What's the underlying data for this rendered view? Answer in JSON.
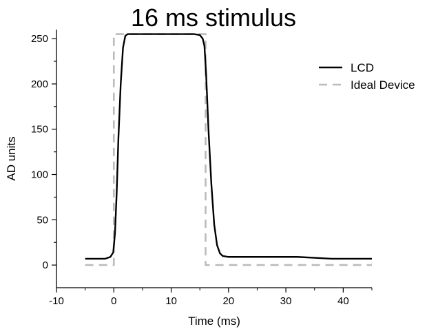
{
  "colors": {
    "lcd": "#000000",
    "ideal": "#bbbbbb",
    "axis": "#000000"
  },
  "chart_data": {
    "type": "line",
    "title": "16 ms stimulus",
    "xlabel": "Time (ms)",
    "ylabel": "AD units",
    "xlim": [
      -10,
      45
    ],
    "ylim": [
      -25,
      260
    ],
    "xticks": [
      -10,
      0,
      10,
      20,
      30,
      40
    ],
    "yticks": [
      0,
      50,
      100,
      150,
      200,
      250
    ],
    "x_tick_labels": [
      "-10",
      "0",
      "10",
      "20",
      "30",
      "40"
    ],
    "y_tick_labels": [
      "0",
      "50",
      "100",
      "150",
      "200",
      "250"
    ],
    "grid": false,
    "legend_position": "top-right",
    "series": [
      {
        "name": "LCD",
        "style": "solid",
        "x": [
          -5,
          -1.5,
          -0.6,
          -0.1,
          0.2,
          0.5,
          0.8,
          1.2,
          1.6,
          2.0,
          2.4,
          3,
          6,
          10,
          14,
          15,
          15.5,
          15.8,
          16.1,
          16.5,
          17,
          17.5,
          18,
          18.5,
          19,
          20,
          22,
          25,
          28,
          32,
          35,
          38,
          40,
          42,
          45
        ],
        "y": [
          7,
          7,
          9,
          14,
          35,
          80,
          140,
          200,
          240,
          253,
          255,
          255,
          255,
          255,
          255,
          254,
          250,
          242,
          210,
          150,
          90,
          45,
          22,
          13,
          10,
          9,
          9,
          9,
          9,
          9,
          8,
          7,
          7,
          7,
          7
        ]
      },
      {
        "name": "Ideal Device",
        "style": "dashed",
        "x": [
          -5,
          0,
          0,
          16,
          16,
          45
        ],
        "y": [
          0,
          0,
          255,
          255,
          0,
          0
        ]
      }
    ]
  }
}
